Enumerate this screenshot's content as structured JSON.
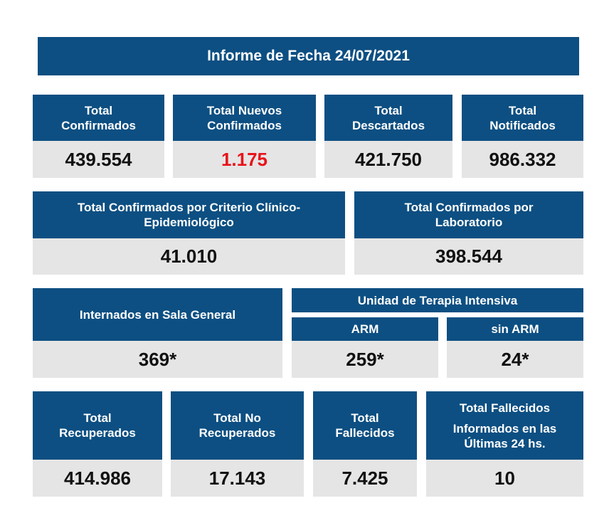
{
  "title": "Informe de Fecha 24/07/2021",
  "colors": {
    "header_bg": "#0d4f82",
    "value_bg": "#e5e5e5",
    "highlight": "#e8141b"
  },
  "row1": [
    {
      "label_1": "Total",
      "label_2": "Confirmados",
      "value": "439.554"
    },
    {
      "label_1": "Total Nuevos",
      "label_2": "Confirmados",
      "value": "1.175"
    },
    {
      "label_1": "Total",
      "label_2": "Descartados",
      "value": "421.750"
    },
    {
      "label_1": "Total",
      "label_2": "Notificados",
      "value": "986.332"
    }
  ],
  "row2": [
    {
      "label_1": "Total Confirmados por Criterio Clínico-",
      "label_2": "Epidemiológico",
      "value": "41.010"
    },
    {
      "label_1": "Total Confirmados por",
      "label_2": "Laboratorio",
      "value": "398.544"
    }
  ],
  "row3": {
    "sala_general": {
      "label": "Internados en Sala General",
      "value": "369*"
    },
    "uti": {
      "label": "Unidad de Terapia Intensiva",
      "arm": {
        "label": "ARM",
        "value": "259*"
      },
      "sin_arm": {
        "label": "sin ARM",
        "value": "24*"
      }
    }
  },
  "row4": [
    {
      "label_1": "Total",
      "label_2": "Recuperados",
      "value": "414.986"
    },
    {
      "label_1": "Total No",
      "label_2": "Recuperados",
      "value": "17.143"
    },
    {
      "label_1": "Total",
      "label_2": "Fallecidos",
      "value": "7.425"
    },
    {
      "label_1": "Total Fallecidos",
      "label_2": "Informados en las",
      "label_3": "Últimas 24 hs.",
      "value": "10"
    }
  ]
}
